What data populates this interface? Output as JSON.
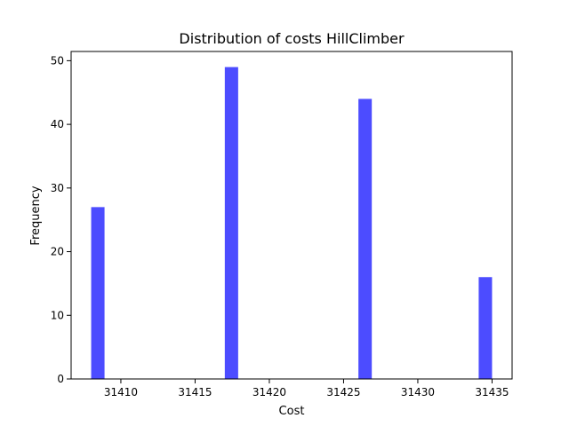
{
  "chart_data": {
    "type": "bar",
    "title": "Distribution of costs HillClimber",
    "xlabel": "Cost",
    "ylabel": "Frequency",
    "bar_color": "#0000ff",
    "bar_opacity": 0.7,
    "xlim": [
      31406.65,
      31436.35
    ],
    "ylim": [
      0,
      51.45
    ],
    "xticks": [
      31410,
      31415,
      31420,
      31425,
      31430,
      31435
    ],
    "yticks": [
      0,
      10,
      20,
      30,
      40,
      50
    ],
    "bin_width": 0.9,
    "bins": [
      {
        "x_start": 31408.0,
        "value": 27
      },
      {
        "x_start": 31417.0,
        "value": 49
      },
      {
        "x_start": 31426.0,
        "value": 44
      },
      {
        "x_start": 31434.1,
        "value": 16
      }
    ]
  }
}
